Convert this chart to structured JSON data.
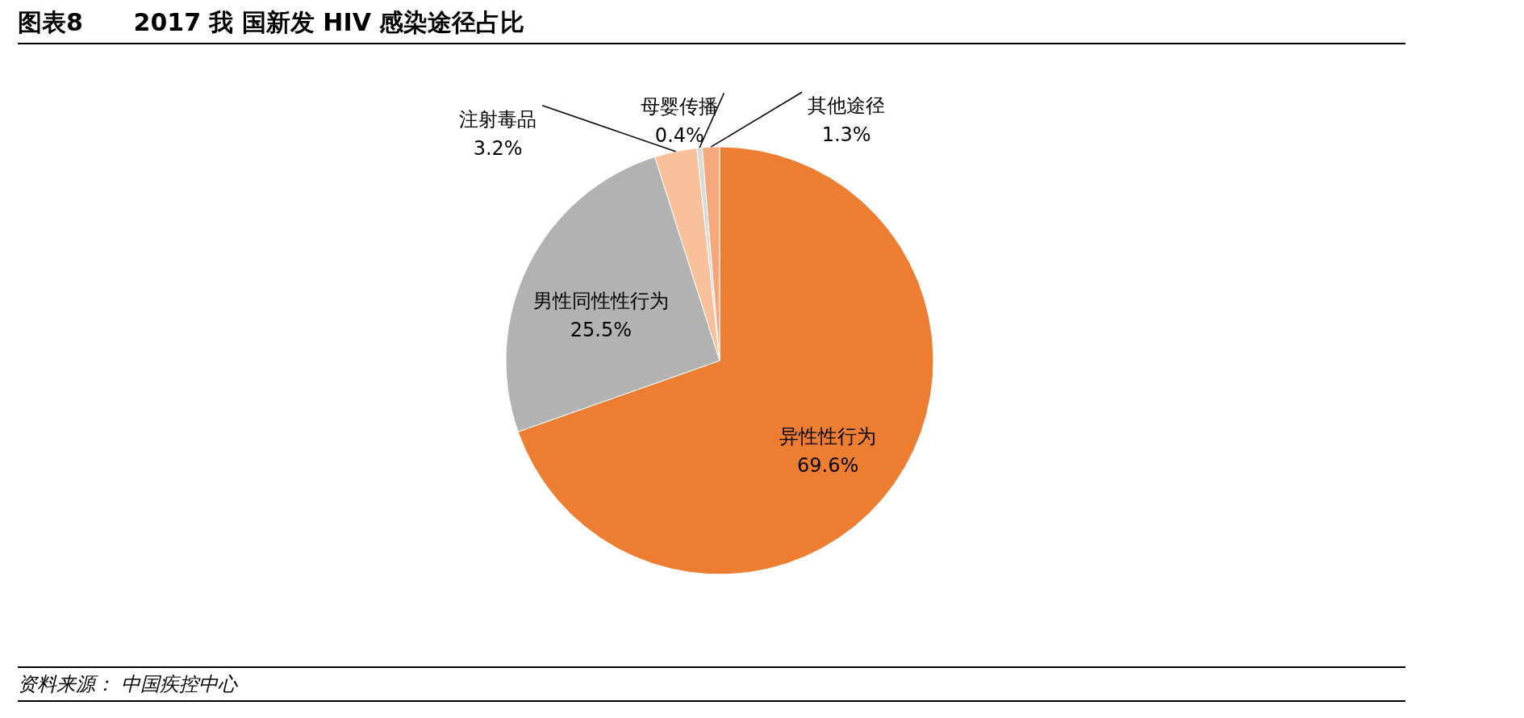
{
  "chart_data": {
    "type": "pie",
    "title": "图表8      2017 我 国新发 HIV 感染途径占比",
    "categories": [
      "异性性行为",
      "男性同性性行为",
      "注射毒品",
      "母婴传播",
      "其他途径"
    ],
    "values": [
      69.6,
      25.5,
      3.2,
      0.4,
      1.3
    ],
    "colors": [
      "#ed7d31",
      "#b2b2b2",
      "#f8c19b",
      "#d9d9d9",
      "#f4a77a"
    ],
    "value_labels": [
      "69.6%",
      "25.5%",
      "3.2%",
      "0.4%",
      "1.3%"
    ],
    "annotations": [
      "资料来源： 中国疾控中心"
    ]
  }
}
